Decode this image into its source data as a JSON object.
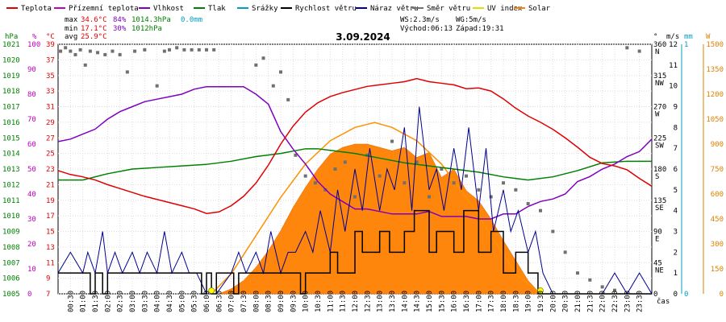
{
  "chart_data": {
    "type": "line",
    "title": "3.09.2024",
    "legend": [
      {
        "label": "Teplota",
        "color": "#e00000"
      },
      {
        "label": "Přízemní teplota",
        "color": "#c000c0"
      },
      {
        "label": "Vlhkost",
        "color": "#8000c0"
      },
      {
        "label": "Tlak",
        "color": "#008000"
      },
      {
        "label": "Srážky",
        "color": "#00a0c0"
      },
      {
        "label": "Rychlost větru",
        "color": "#000000"
      },
      {
        "label": "Náraz větru",
        "color": "#000090"
      },
      {
        "label": "Směr větru",
        "color": "#707070"
      },
      {
        "label": "UV index",
        "color": "#e0e000"
      },
      {
        "label": "Solar",
        "color": "#ff8000"
      }
    ],
    "stats": {
      "max_label": "max",
      "max_temp": "34.6°C",
      "max_hum": "84%",
      "max_press": "1014.3hPa",
      "max_rain": "0.0mm",
      "min_label": "min",
      "min_temp": "17.1°C",
      "min_hum": "30%",
      "min_press": "1012hPa",
      "avg_label": "avg",
      "avg_temp": "25.9°C",
      "ws": "WS:2.3m/s",
      "wg": "WG:5m/s",
      "sunrise": "Východ:06:13",
      "sunset": "Západ:19:31"
    },
    "axes": {
      "press_unit": "hPa",
      "hum_unit": "%",
      "temp_unit": "°C",
      "dir_unit": "°",
      "wind_unit": "m/s",
      "rain_unit": "mm",
      "solar_unit": "W",
      "xlabel": "čas",
      "pressure_ticks": [
        "1021",
        "1020",
        "1019",
        "1018",
        "1017",
        "1016",
        "1015",
        "1014",
        "1013",
        "1012",
        "1011",
        "1010",
        "1009",
        "1008",
        "1007",
        "1006",
        "1005"
      ],
      "humidity_ticks": [
        "100",
        "90",
        "80",
        "70",
        "60",
        "50",
        "40",
        "30",
        "20",
        "10",
        "0"
      ],
      "temperature_ticks": [
        "39",
        "37",
        "35",
        "33",
        "31",
        "29",
        "27",
        "25",
        "23",
        "21",
        "19",
        "17",
        "15",
        "13",
        "11",
        "9",
        "7"
      ],
      "direction_ticks": [
        {
          "deg": 360,
          "label": "360",
          "dir": "N"
        },
        {
          "deg": 315,
          "label": "315",
          "dir": "NW"
        },
        {
          "deg": 270,
          "label": "270",
          "dir": "W"
        },
        {
          "deg": 225,
          "label": "225",
          "dir": "SW"
        },
        {
          "deg": 180,
          "label": "180",
          "dir": "S"
        },
        {
          "deg": 135,
          "label": "135",
          "dir": "SE"
        },
        {
          "deg": 90,
          "label": "90",
          "dir": "E"
        },
        {
          "deg": 45,
          "label": "45",
          "dir": "NE"
        },
        {
          "deg": 0,
          "label": "0",
          "dir": ""
        }
      ],
      "wind_ticks": [
        "12",
        "11",
        "10",
        "9",
        "8",
        "7",
        "6",
        "5",
        "4",
        "3",
        "2",
        "1",
        "0"
      ],
      "rain_ticks": [
        "1",
        "0"
      ],
      "solar_ticks": [
        "1500",
        "1350",
        "1200",
        "1050",
        "900",
        "750",
        "600",
        "450",
        "300",
        "150",
        "0"
      ],
      "time_ticks": [
        "00:30",
        "01:00",
        "01:30",
        "02:00",
        "02:30",
        "03:00",
        "03:30",
        "04:00",
        "04:30",
        "05:00",
        "05:30",
        "06:00",
        "06:30",
        "07:00",
        "07:30",
        "08:00",
        "08:30",
        "09:00",
        "09:30",
        "10:00",
        "10:30",
        "11:00",
        "11:30",
        "12:00",
        "12:30",
        "13:00",
        "13:30",
        "14:00",
        "14:30",
        "15:00",
        "15:30",
        "16:00",
        "16:30",
        "17:00",
        "17:30",
        "18:00",
        "18:30",
        "19:00",
        "19:30",
        "20:00",
        "20:30",
        "21:00",
        "21:30",
        "22:00",
        "22:30",
        "23:00",
        "23:30"
      ]
    },
    "ranges": {
      "pressure": [
        1005,
        1021
      ],
      "humidity": [
        0,
        100
      ],
      "temperature": [
        7,
        39
      ],
      "wind": [
        0,
        12
      ],
      "direction": [
        0,
        360
      ],
      "solar": [
        0,
        1500
      ],
      "hours": [
        0,
        24
      ]
    },
    "temperature": {
      "hours": [
        0,
        0.5,
        1,
        1.5,
        2,
        2.5,
        3,
        3.5,
        4,
        4.5,
        5,
        5.5,
        6,
        6.5,
        7,
        7.5,
        8,
        8.5,
        9,
        9.5,
        10,
        10.5,
        11,
        11.5,
        12,
        12.5,
        13,
        13.5,
        14,
        14.5,
        15,
        15.5,
        16,
        16.5,
        17,
        17.5,
        18,
        18.5,
        19,
        19.5,
        20,
        20.5,
        21,
        21.5,
        22,
        22.5,
        23,
        23.5,
        24
      ],
      "values": [
        22.8,
        22.3,
        22.0,
        21.6,
        21.0,
        20.5,
        20.0,
        19.5,
        19.1,
        18.7,
        18.3,
        17.9,
        17.3,
        17.5,
        18.3,
        19.5,
        21.2,
        23.5,
        26.2,
        28.5,
        30.3,
        31.5,
        32.3,
        32.8,
        33.2,
        33.6,
        33.8,
        34.0,
        34.2,
        34.6,
        34.2,
        34.0,
        33.8,
        33.3,
        33.4,
        33.0,
        32.0,
        30.8,
        29.8,
        29.0,
        28.1,
        27.0,
        25.8,
        24.5,
        23.7,
        23.4,
        22.9,
        21.8,
        20.8
      ]
    },
    "humidity": {
      "hours": [
        0,
        0.5,
        1,
        1.5,
        2,
        2.5,
        3,
        3.5,
        4,
        4.5,
        5,
        5.5,
        6,
        6.5,
        7,
        7.5,
        8,
        8.5,
        9,
        9.5,
        10,
        10.5,
        11,
        11.5,
        12,
        12.5,
        13,
        13.5,
        14,
        14.5,
        15,
        15.5,
        16,
        16.5,
        17,
        17.5,
        18,
        18.5,
        19,
        19.5,
        20,
        20.5,
        21,
        21.5,
        22,
        22.5,
        23,
        23.5,
        24
      ],
      "values": [
        61,
        62,
        64,
        66,
        70,
        73,
        75,
        77,
        78,
        79,
        80,
        82,
        83,
        83,
        83,
        83,
        80,
        76,
        65,
        58,
        52,
        45,
        40,
        37,
        34,
        34,
        33,
        32,
        32,
        32,
        33,
        31,
        31,
        31,
        30,
        30,
        32,
        32,
        35,
        37,
        38,
        40,
        45,
        47,
        50,
        52,
        55,
        57,
        62
      ]
    },
    "pressure": {
      "hours": [
        0,
        1,
        2,
        3,
        4,
        5,
        6,
        7,
        8,
        9,
        10,
        10.5,
        11,
        12,
        13,
        14,
        15,
        16,
        17,
        18,
        19,
        20,
        21,
        22,
        23,
        24
      ],
      "values": [
        1012.3,
        1012.3,
        1012.7,
        1013.0,
        1013.1,
        1013.2,
        1013.3,
        1013.5,
        1013.8,
        1014.0,
        1014.3,
        1014.3,
        1014.2,
        1014.0,
        1013.7,
        1013.4,
        1013.2,
        1013.0,
        1012.8,
        1012.5,
        1012.3,
        1012.5,
        1012.9,
        1013.4,
        1013.5,
        1013.5
      ]
    },
    "wind_speed": {
      "hours": [
        0,
        1.3,
        1.3,
        1.5,
        1.5,
        1.8,
        1.8,
        2.0,
        2.0,
        5.8,
        5.8,
        6.0,
        6.0,
        6.2,
        6.2,
        6.4,
        6.4,
        7.1,
        7.1,
        7.3,
        7.3,
        9.8,
        9.8,
        10.0,
        10.0,
        11.0,
        11.0,
        11.3,
        11.3,
        12.0,
        12.0,
        12.3,
        12.3,
        13.0,
        13.0,
        13.4,
        13.4,
        14.0,
        14.0,
        14.4,
        14.4,
        15.0,
        15.0,
        15.3,
        15.3,
        16.0,
        16.0,
        16.4,
        16.4,
        17.0,
        17.0,
        17.5,
        17.5,
        18.0,
        18.0,
        18.5,
        18.5,
        19.0,
        19.0,
        19.4,
        19.4,
        24.0
      ],
      "values": [
        1,
        1,
        0,
        0,
        1,
        1,
        0,
        0,
        1,
        1,
        0,
        0,
        1,
        1,
        0,
        0,
        1,
        1,
        0,
        0,
        1,
        1,
        0,
        0,
        1,
        1,
        2,
        2,
        1,
        1,
        3,
        3,
        2,
        2,
        3,
        3,
        2,
        2,
        3,
        3,
        4,
        4,
        2,
        2,
        3,
        3,
        2,
        2,
        4,
        4,
        2,
        2,
        3,
        3,
        1,
        1,
        2,
        2,
        1,
        1,
        0,
        0
      ]
    },
    "wind_gust": {
      "hours": [
        0,
        0.5,
        1,
        1.2,
        1.5,
        1.8,
        2.0,
        2.3,
        2.6,
        3.0,
        3.3,
        3.6,
        4.0,
        4.3,
        4.6,
        5.0,
        5.3,
        5.6,
        6.0,
        6.4,
        7.0,
        7.3,
        7.6,
        8.0,
        8.3,
        8.6,
        9.0,
        9.3,
        9.6,
        10.0,
        10.3,
        10.6,
        11.0,
        11.3,
        11.6,
        12.0,
        12.3,
        12.6,
        13.0,
        13.3,
        13.6,
        14.0,
        14.3,
        14.6,
        15.0,
        15.3,
        15.6,
        16.0,
        16.3,
        16.6,
        17.0,
        17.3,
        17.6,
        18.0,
        18.3,
        18.6,
        19.0,
        19.3,
        19.6,
        20.0,
        22.0,
        22.5,
        23.0,
        23.5,
        24.0
      ],
      "values": [
        1,
        2,
        1,
        2,
        1,
        3,
        1,
        2,
        1,
        2,
        1,
        2,
        1,
        3,
        1,
        2,
        1,
        1,
        0,
        0,
        1,
        2,
        1,
        2,
        1,
        3,
        1,
        2,
        2,
        3,
        2,
        4,
        2,
        5,
        3,
        6,
        4,
        7,
        4,
        6,
        5,
        8,
        4,
        9,
        5,
        6,
        4,
        7,
        5,
        8,
        4,
        7,
        3,
        5,
        3,
        4,
        2,
        3,
        1,
        0,
        0,
        1,
        0,
        1,
        0
      ]
    },
    "wind_direction": {
      "hours": [
        0.1,
        0.3,
        0.5,
        0.7,
        0.9,
        1.1,
        1.3,
        1.6,
        1.9,
        2.2,
        2.5,
        2.8,
        3.1,
        3.5,
        4.0,
        4.3,
        4.5,
        4.8,
        5.1,
        5.4,
        5.7,
        6.0,
        6.3,
        8.0,
        8.3,
        8.7,
        9.0,
        9.3,
        9.6,
        10.0,
        10.4,
        10.8,
        11.2,
        11.6,
        12.0,
        12.5,
        13.0,
        13.5,
        14.0,
        14.5,
        15.0,
        15.5,
        16.0,
        16.5,
        17.0,
        17.5,
        18.0,
        18.5,
        19.0,
        19.5,
        20.0,
        20.5,
        21.0,
        21.5,
        22.0,
        22.5,
        23.0,
        23.5
      ],
      "values": [
        350,
        355,
        350,
        345,
        352,
        330,
        350,
        348,
        345,
        350,
        345,
        320,
        350,
        352,
        300,
        350,
        352,
        355,
        352,
        352,
        352,
        352,
        352,
        330,
        340,
        300,
        320,
        280,
        200,
        170,
        160,
        150,
        180,
        190,
        140,
        200,
        170,
        220,
        160,
        190,
        140,
        180,
        160,
        170,
        150,
        140,
        160,
        150,
        130,
        120,
        90,
        60,
        30,
        20,
        10,
        5,
        355,
        350
      ]
    },
    "solar": {
      "hours": [
        6.5,
        7,
        7.5,
        8,
        8.5,
        9,
        9.5,
        10,
        10.5,
        11,
        11.5,
        12,
        12.5,
        13,
        13.5,
        14,
        14.5,
        15,
        15.5,
        16,
        16.5,
        17,
        17.5,
        18,
        18.5,
        19,
        19.5
      ],
      "values": [
        0,
        30,
        80,
        160,
        260,
        380,
        520,
        640,
        750,
        840,
        880,
        900,
        900,
        880,
        860,
        880,
        820,
        850,
        700,
        750,
        620,
        560,
        450,
        320,
        200,
        80,
        0
      ]
    },
    "solar_theoretical": {
      "hours": [
        6.2,
        7,
        8,
        9,
        10,
        11,
        12,
        12.8,
        13.5,
        14.5,
        15.5,
        16.5,
        17.5,
        18.5,
        19.5
      ],
      "values": [
        0,
        120,
        350,
        580,
        780,
        920,
        1000,
        1030,
        1000,
        920,
        780,
        580,
        350,
        120,
        0
      ]
    },
    "uv_markers_hours": [
      6.2,
      19.5
    ]
  }
}
